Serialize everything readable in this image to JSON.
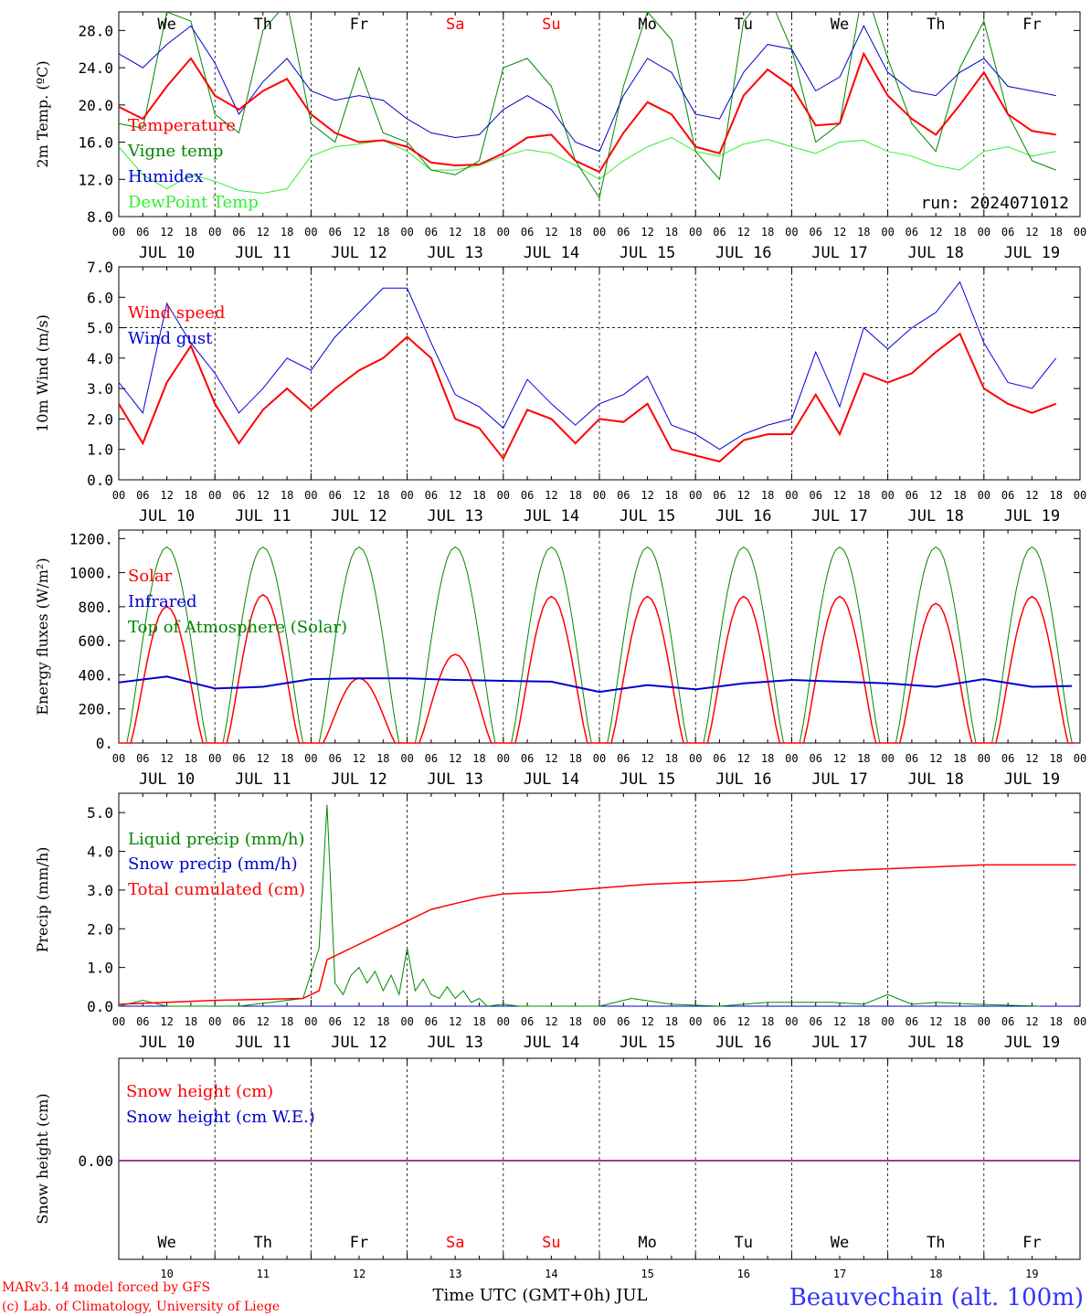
{
  "chart_data": [
    {
      "type": "line",
      "ylabel": "2m Temp. (ºC)",
      "ylim": [
        8,
        30
      ],
      "yticks": [
        "8.0",
        "12.0",
        "16.0",
        "20.0",
        "24.0",
        "28.0"
      ],
      "ytick_values": [
        8,
        12,
        16,
        20,
        24,
        28
      ],
      "annotation": "run: 2024071012",
      "x_hours": [
        0,
        6,
        12,
        18,
        24,
        30,
        36,
        42,
        48,
        54,
        60,
        66,
        72,
        78,
        84,
        90,
        96,
        102,
        108,
        114,
        120,
        126,
        132,
        138,
        144,
        150,
        156,
        162,
        168,
        174,
        180,
        186,
        192,
        198,
        204,
        210,
        216,
        222,
        228,
        234
      ],
      "series": [
        {
          "name": "Temperature",
          "color": "#ff0000",
          "width": 2,
          "values": [
            19.8,
            18.5,
            22.0,
            25.0,
            21.0,
            19.5,
            21.5,
            22.8,
            19.0,
            17.0,
            16.0,
            16.2,
            15.5,
            13.8,
            13.5,
            13.6,
            14.8,
            16.5,
            16.8,
            14.0,
            12.8,
            17.0,
            20.3,
            19.0,
            15.5,
            14.8,
            21.0,
            23.8,
            22.0,
            17.8,
            18.0,
            25.5,
            21.0,
            18.5,
            16.8,
            20.0,
            23.5,
            19.0,
            17.2,
            16.8
          ]
        },
        {
          "name": "Vigne temp",
          "color": "#008800",
          "width": 1,
          "values": [
            18,
            17.5,
            30,
            29,
            19,
            17,
            28,
            31,
            18,
            16,
            24,
            17,
            16,
            13,
            12.5,
            14,
            24,
            25,
            22,
            14,
            10,
            22,
            30,
            27,
            15,
            12,
            29,
            32,
            26,
            16,
            18,
            33,
            25,
            18,
            15,
            24,
            29,
            19,
            14,
            13
          ]
        },
        {
          "name": "Humidex",
          "color": "#0000cc",
          "width": 1,
          "values": [
            25.5,
            24.0,
            26.5,
            28.5,
            24.5,
            19.0,
            22.5,
            25.0,
            21.5,
            20.5,
            21.0,
            20.5,
            18.5,
            17.0,
            16.5,
            16.8,
            19.5,
            21.0,
            19.5,
            16.0,
            15.0,
            21.0,
            25.0,
            23.5,
            19.0,
            18.5,
            23.5,
            26.5,
            26.0,
            21.5,
            23.0,
            28.5,
            23.5,
            21.5,
            21.0,
            23.5,
            25.0,
            22.0,
            21.5,
            21.0
          ]
        },
        {
          "name": "DewPoint Temp",
          "color": "#33ee33",
          "width": 1,
          "values": [
            15.5,
            12.5,
            11.0,
            12.5,
            11.8,
            10.8,
            10.5,
            11.0,
            14.5,
            15.5,
            15.8,
            16.2,
            15.0,
            13.0,
            13.0,
            13.5,
            14.5,
            15.2,
            14.8,
            13.5,
            12.0,
            14.0,
            15.5,
            16.5,
            15.0,
            14.5,
            15.8,
            16.3,
            15.5,
            14.8,
            16.0,
            16.2,
            15.0,
            14.5,
            13.5,
            13.0,
            15.0,
            15.5,
            14.5,
            15.0
          ]
        }
      ]
    },
    {
      "type": "line",
      "ylabel": "10m Wind (m/s)",
      "ylim": [
        0,
        7
      ],
      "yticks": [
        "0.0",
        "1.0",
        "2.0",
        "3.0",
        "4.0",
        "5.0",
        "6.0",
        "7.0"
      ],
      "ytick_values": [
        0,
        1,
        2,
        3,
        4,
        5,
        6,
        7
      ],
      "reference_line": 5,
      "x_hours": [
        0,
        6,
        12,
        18,
        24,
        30,
        36,
        42,
        48,
        54,
        60,
        66,
        72,
        78,
        84,
        90,
        96,
        102,
        108,
        114,
        120,
        126,
        132,
        138,
        144,
        150,
        156,
        162,
        168,
        174,
        180,
        186,
        192,
        198,
        204,
        210,
        216,
        222,
        228,
        234
      ],
      "series": [
        {
          "name": "Wind speed",
          "color": "#ff0000",
          "width": 2,
          "values": [
            2.5,
            1.2,
            3.2,
            4.4,
            2.5,
            1.2,
            2.3,
            3.0,
            2.3,
            3.0,
            3.6,
            4.0,
            4.7,
            4.0,
            2.0,
            1.7,
            0.7,
            2.3,
            2.0,
            1.2,
            2.0,
            1.9,
            2.5,
            1.0,
            0.8,
            0.6,
            1.3,
            1.5,
            1.5,
            2.8,
            1.5,
            3.5,
            3.2,
            3.5,
            4.2,
            4.8,
            3.0,
            2.5,
            2.2,
            2.5
          ]
        },
        {
          "name": "Wind gust",
          "color": "#0000dd",
          "width": 1,
          "values": [
            3.2,
            2.2,
            5.8,
            4.5,
            3.5,
            2.2,
            3.0,
            4.0,
            3.6,
            4.7,
            5.5,
            6.3,
            6.3,
            4.5,
            2.8,
            2.4,
            1.7,
            3.3,
            2.5,
            1.8,
            2.5,
            2.8,
            3.4,
            1.8,
            1.5,
            1.0,
            1.5,
            1.8,
            2.0,
            4.2,
            2.4,
            5.0,
            4.3,
            5.0,
            5.5,
            6.5,
            4.5,
            3.2,
            3.0,
            4.0
          ]
        }
      ]
    },
    {
      "type": "line",
      "ylabel": "Energy fluxes (W/m²)",
      "ylim": [
        0,
        1250
      ],
      "yticks": [
        "0.",
        "200.",
        "400.",
        "600.",
        "800.",
        "1000.",
        "1200."
      ],
      "ytick_values": [
        0,
        200,
        400,
        600,
        800,
        1000,
        1200
      ],
      "peak_hour": 12,
      "half_width_hours": 9,
      "series": [
        {
          "name": "Solar",
          "color": "#ff0000",
          "width": 1.5,
          "daily_peaks": [
            800,
            870,
            380,
            520,
            860,
            860,
            860,
            860,
            820,
            860
          ]
        },
        {
          "name": "Infrared",
          "color": "#0000cc",
          "width": 2,
          "x_hours": [
            0,
            12,
            24,
            36,
            48,
            60,
            72,
            84,
            96,
            108,
            120,
            132,
            144,
            156,
            168,
            180,
            192,
            204,
            216,
            228,
            238
          ],
          "values": [
            355,
            390,
            320,
            330,
            375,
            380,
            380,
            370,
            365,
            360,
            300,
            340,
            315,
            350,
            370,
            360,
            350,
            330,
            375,
            330,
            335
          ]
        },
        {
          "name": "Top of Atmosphere (Solar)",
          "color": "#008800",
          "width": 1,
          "daily_peaks": [
            1150,
            1150,
            1150,
            1150,
            1150,
            1150,
            1150,
            1150,
            1150,
            1150
          ]
        }
      ]
    },
    {
      "type": "line",
      "ylabel": "Precip (mm/h)",
      "ylim": [
        0,
        5.5
      ],
      "yticks": [
        "0.0",
        "1.0",
        "2.0",
        "3.0",
        "4.0",
        "5.0"
      ],
      "ytick_values": [
        0,
        1,
        2,
        3,
        4,
        5
      ],
      "series": [
        {
          "name": "Liquid precip (mm/h)",
          "color": "#008800",
          "width": 1,
          "x_hours": [
            0,
            6,
            12,
            30,
            46,
            50,
            52,
            54,
            56,
            58,
            60,
            62,
            64,
            66,
            68,
            70,
            72,
            74,
            76,
            78,
            80,
            82,
            84,
            86,
            88,
            90,
            92,
            96,
            100,
            108,
            120,
            128,
            138,
            150,
            162,
            178,
            186,
            192,
            198,
            204,
            214,
            230
          ],
          "values": [
            0,
            0.15,
            0,
            0,
            0.2,
            1.5,
            5.2,
            0.6,
            0.3,
            0.8,
            1.0,
            0.6,
            0.9,
            0.4,
            0.8,
            0.3,
            1.5,
            0.4,
            0.7,
            0.3,
            0.2,
            0.5,
            0.2,
            0.4,
            0.1,
            0.2,
            0,
            0.05,
            0,
            0,
            0,
            0.2,
            0.05,
            0,
            0.1,
            0.1,
            0.05,
            0.3,
            0.05,
            0.1,
            0.05,
            0
          ]
        },
        {
          "name": "Snow precip (mm/h)",
          "color": "#0000cc",
          "width": 1,
          "x_hours": [
            0,
            239
          ],
          "values": [
            0,
            0
          ]
        },
        {
          "name": "Total cumulated (cm)",
          "color": "#ff0000",
          "width": 1.5,
          "x_hours": [
            0,
            24,
            46,
            50,
            52,
            58,
            64,
            72,
            78,
            84,
            90,
            96,
            108,
            120,
            132,
            144,
            156,
            168,
            180,
            192,
            204,
            216,
            228,
            239
          ],
          "values": [
            0.05,
            0.15,
            0.2,
            0.4,
            1.2,
            1.5,
            1.8,
            2.2,
            2.5,
            2.65,
            2.8,
            2.9,
            2.95,
            3.05,
            3.15,
            3.2,
            3.25,
            3.4,
            3.5,
            3.55,
            3.6,
            3.65,
            3.65,
            3.65
          ]
        }
      ]
    },
    {
      "type": "line",
      "ylabel": "Snow height (cm)",
      "yticks": [
        "0.00"
      ],
      "series": [
        {
          "name": "Snow height (cm)",
          "color": "#ff0000",
          "values": [
            0,
            0
          ]
        },
        {
          "name": "Snow height (cm W.E.)",
          "color": "#0000cc",
          "values": [
            0,
            0
          ]
        }
      ]
    }
  ],
  "shared_x": {
    "days": [
      {
        "date": "JUL 10",
        "num": "10",
        "dow": "We",
        "weekend": false
      },
      {
        "date": "JUL 11",
        "num": "11",
        "dow": "Th",
        "weekend": false
      },
      {
        "date": "JUL 12",
        "num": "12",
        "dow": "Fr",
        "weekend": false
      },
      {
        "date": "JUL 13",
        "num": "13",
        "dow": "Sa",
        "weekend": true
      },
      {
        "date": "JUL 14",
        "num": "14",
        "dow": "Su",
        "weekend": true
      },
      {
        "date": "JUL 15",
        "num": "15",
        "dow": "Mo",
        "weekend": false
      },
      {
        "date": "JUL 16",
        "num": "16",
        "dow": "Tu",
        "weekend": false
      },
      {
        "date": "JUL 17",
        "num": "17",
        "dow": "We",
        "weekend": false
      },
      {
        "date": "JUL 18",
        "num": "18",
        "dow": "Th",
        "weekend": false
      },
      {
        "date": "JUL 19",
        "num": "19",
        "dow": "Fr",
        "weekend": false
      }
    ],
    "hour_labels": [
      "00",
      "06",
      "12",
      "18"
    ],
    "final_hour_label": "00",
    "xlabel": "Time UTC (GMT+0h) JUL",
    "weekday_color": "#000000",
    "weekend_color": "#ff0000"
  },
  "footer": {
    "model_line": "MARv3.14 model forced by GFS",
    "credit_line": "(c) Lab. of Climatology, University of Liege",
    "station": "Beauvechain (alt. 100m)",
    "model_color": "#ff0000",
    "station_color": "#3333ff"
  }
}
